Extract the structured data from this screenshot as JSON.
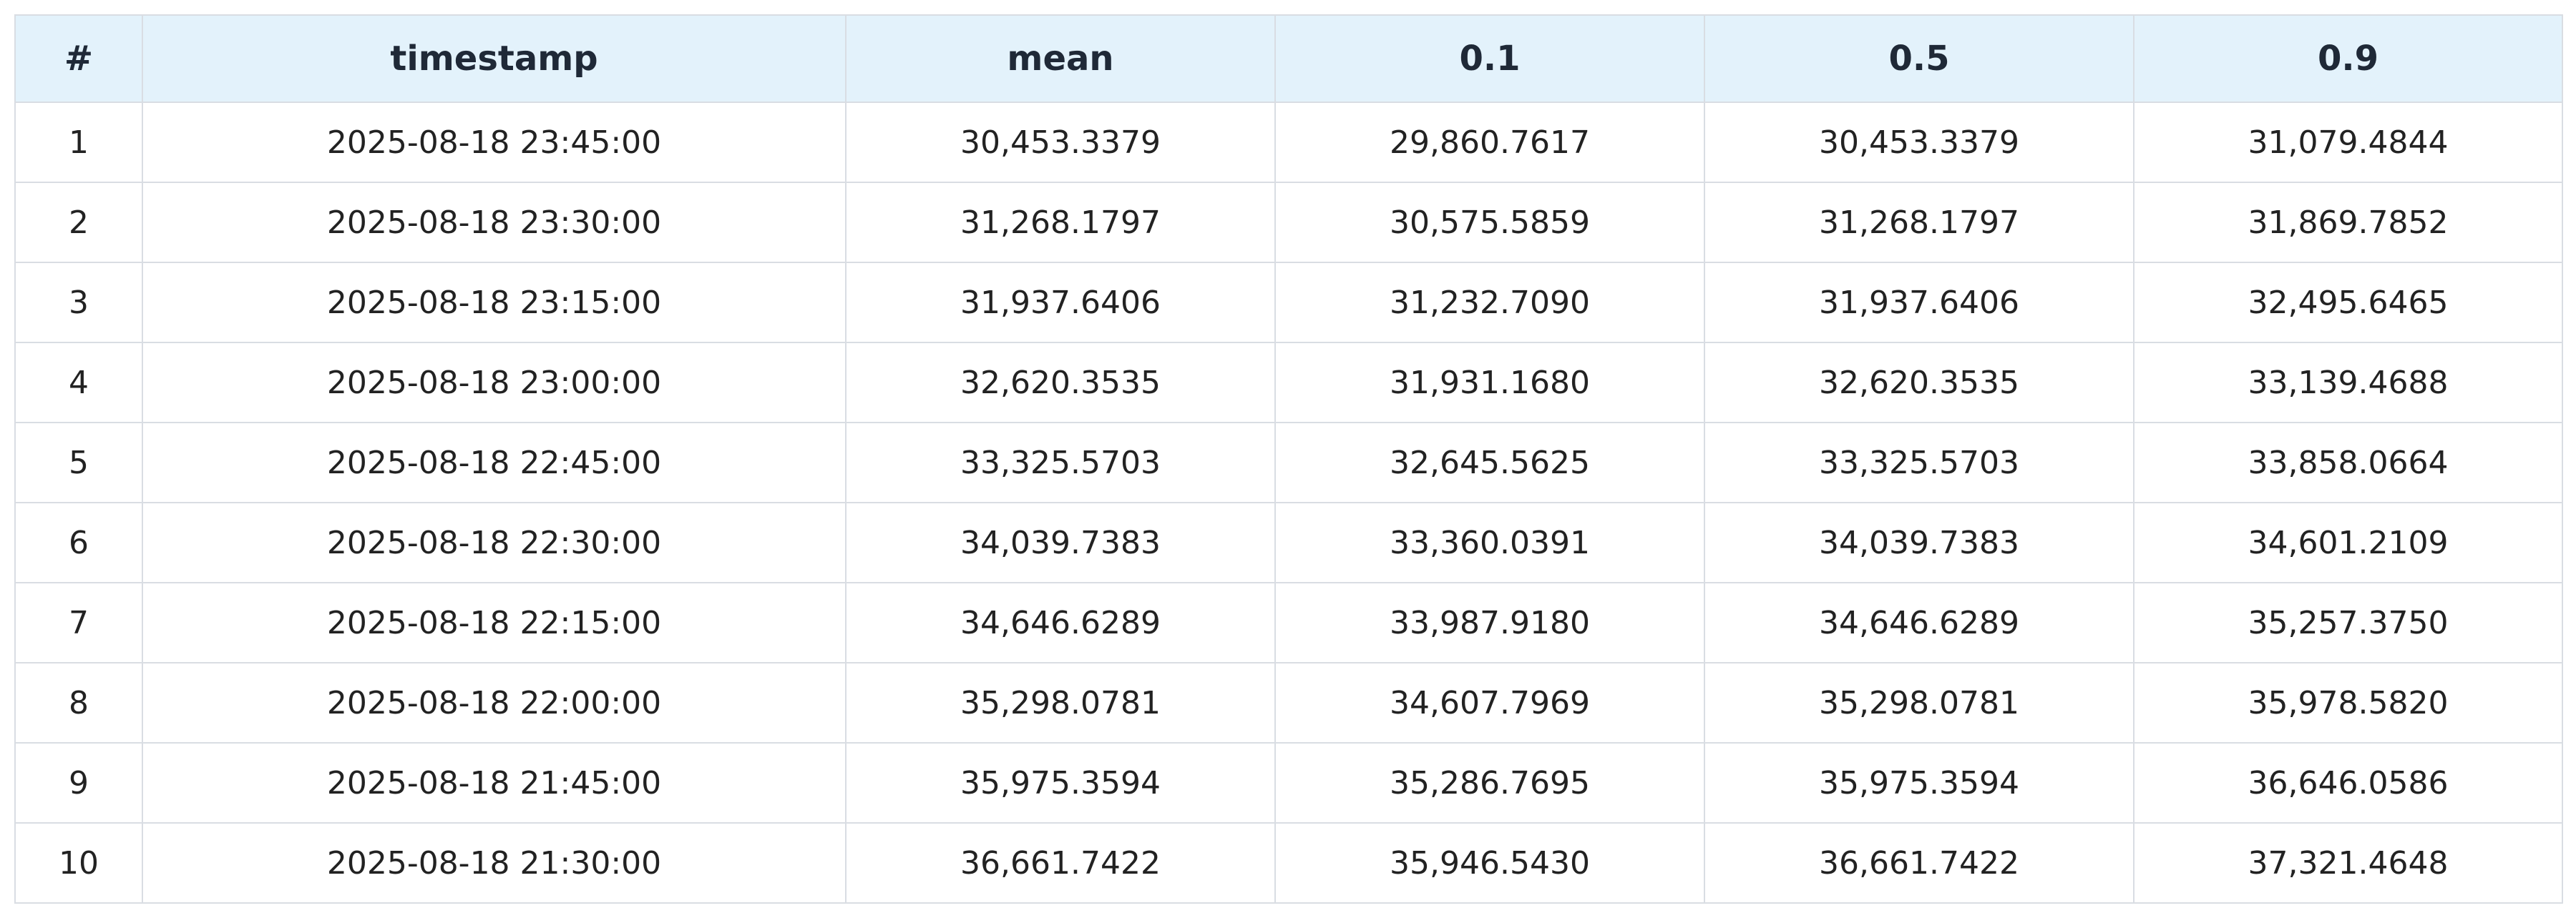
{
  "table": {
    "headers": [
      "#",
      "timestamp",
      "mean",
      "0.1",
      "0.5",
      "0.9"
    ],
    "rows": [
      [
        "1",
        "2025-08-18 23:45:00",
        "30,453.3379",
        "29,860.7617",
        "30,453.3379",
        "31,079.4844"
      ],
      [
        "2",
        "2025-08-18 23:30:00",
        "31,268.1797",
        "30,575.5859",
        "31,268.1797",
        "31,869.7852"
      ],
      [
        "3",
        "2025-08-18 23:15:00",
        "31,937.6406",
        "31,232.7090",
        "31,937.6406",
        "32,495.6465"
      ],
      [
        "4",
        "2025-08-18 23:00:00",
        "32,620.3535",
        "31,931.1680",
        "32,620.3535",
        "33,139.4688"
      ],
      [
        "5",
        "2025-08-18 22:45:00",
        "33,325.5703",
        "32,645.5625",
        "33,325.5703",
        "33,858.0664"
      ],
      [
        "6",
        "2025-08-18 22:30:00",
        "34,039.7383",
        "33,360.0391",
        "34,039.7383",
        "34,601.2109"
      ],
      [
        "7",
        "2025-08-18 22:15:00",
        "34,646.6289",
        "33,987.9180",
        "34,646.6289",
        "35,257.3750"
      ],
      [
        "8",
        "2025-08-18 22:00:00",
        "35,298.0781",
        "34,607.7969",
        "35,298.0781",
        "35,978.5820"
      ],
      [
        "9",
        "2025-08-18 21:45:00",
        "35,975.3594",
        "35,286.7695",
        "35,975.3594",
        "36,646.0586"
      ],
      [
        "10",
        "2025-08-18 21:30:00",
        "36,661.7422",
        "35,946.5430",
        "36,661.7422",
        "37,321.4648"
      ]
    ]
  },
  "colors": {
    "header_bg": "#e3f2fb",
    "border": "#d9dde3",
    "text": "#1f2937"
  }
}
